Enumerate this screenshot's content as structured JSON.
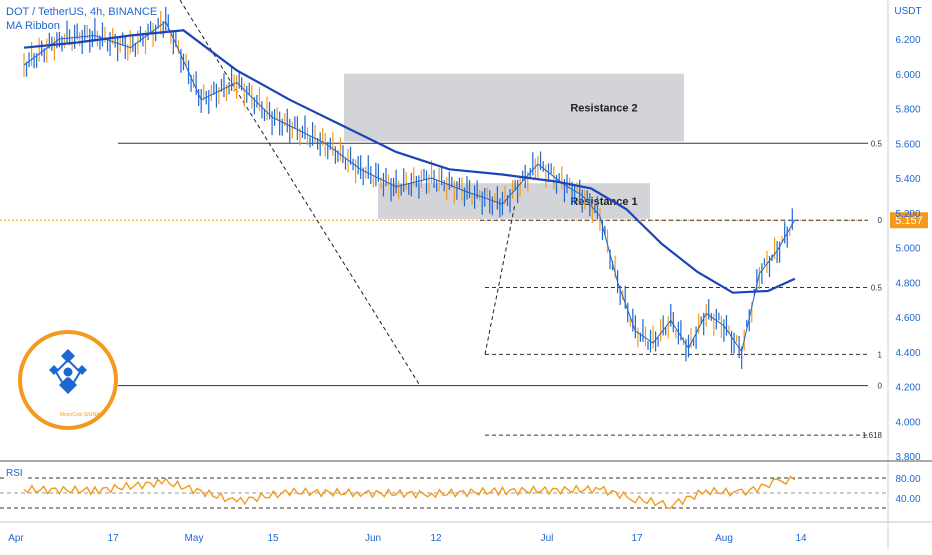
{
  "header": {
    "title": "DOT / TetherUS, 4h, BINANCE",
    "indicator": "MA Ribbon"
  },
  "price_axis": {
    "currency": "USDT",
    "ticks": [
      "6.200",
      "6.000",
      "5.800",
      "5.600",
      "5.400",
      "5.200",
      "5.000",
      "4.800",
      "4.600",
      "4.400",
      "4.200",
      "4.000",
      "3.800"
    ],
    "current_price": "5.157",
    "current_price_color": "#f39a1e"
  },
  "rsi_axis": {
    "label": "RSI",
    "ticks": [
      "80.00",
      "40.00"
    ]
  },
  "time_axis": {
    "labels": [
      "Apr",
      "17",
      "May",
      "15",
      "Jun",
      "12",
      "Jul",
      "17",
      "Aug",
      "14"
    ]
  },
  "zones": [
    {
      "label": "Resistance 2",
      "low": 5.61,
      "high": 6.0
    },
    {
      "label": "Resistance 1",
      "low": 5.165,
      "high": 5.37
    }
  ],
  "fib_labels": [
    "0.5",
    "0",
    "0.5",
    "1",
    "0",
    "1.618"
  ],
  "badge": {
    "text": "MonoCoin SIGNAL"
  },
  "colors": {
    "blue": "#1e66d0",
    "orange": "#f39a1e",
    "zone": "#d3d4d8",
    "line": "#333333"
  },
  "chart_data": {
    "type": "line",
    "title": "DOT / TetherUS, 4h, BINANCE",
    "ylim": [
      3.8,
      6.3
    ],
    "x": [
      "Apr",
      "17",
      "May",
      "15",
      "Jun",
      "12",
      "Jul",
      "17",
      "Aug",
      "14"
    ],
    "series": [
      {
        "name": "DOT / TetherUS",
        "x": [
          "Apr 1",
          "Apr 5",
          "Apr 9",
          "Apr 13",
          "Apr 17",
          "Apr 21",
          "Apr 25",
          "Apr 29",
          "May 1",
          "May 5",
          "May 9",
          "May 13",
          "May 17",
          "May 21",
          "May 25",
          "May 29",
          "Jun 1",
          "Jun 3",
          "Jun 5",
          "Jun 7",
          "Jun 9",
          "Jun 11",
          "Jun 13",
          "Jun 15",
          "Jun 17",
          "Jun 19",
          "Jun 21",
          "Jun 23",
          "Jun 25",
          "Jun 27"
        ],
        "values": [
          6.05,
          6.2,
          6.22,
          6.15,
          6.3,
          5.85,
          5.95,
          5.75,
          5.7,
          5.6,
          5.45,
          5.35,
          5.4,
          5.32,
          5.25,
          5.48,
          5.36,
          5.3,
          5.18,
          4.8,
          4.52,
          4.45,
          4.58,
          4.42,
          4.62,
          4.55,
          4.4,
          4.85,
          4.98,
          5.16
        ]
      },
      {
        "name": "MA Ribbon",
        "x": [
          "Apr 1",
          "Apr 7",
          "Apr 13",
          "Apr 19",
          "Apr 25",
          "May 1",
          "May 7",
          "May 13",
          "May 19",
          "May 25",
          "May 31",
          "Jun 4",
          "Jun 8",
          "Jun 12",
          "Jun 16",
          "Jun 20",
          "Jun 24",
          "Jun 27"
        ],
        "values": [
          6.15,
          6.18,
          6.22,
          6.25,
          6.02,
          5.85,
          5.7,
          5.55,
          5.45,
          5.42,
          5.38,
          5.34,
          5.22,
          5.02,
          4.86,
          4.74,
          4.75,
          4.82
        ]
      },
      {
        "name": "RSI",
        "x": [
          "Apr 1",
          "Apr 9",
          "Apr 17",
          "Apr 25",
          "May 1",
          "May 9",
          "May 17",
          "May 25",
          "Jun 1",
          "Jun 5",
          "Jun 9",
          "Jun 13",
          "Jun 17",
          "Jun 21",
          "Jun 25",
          "Jun 27"
        ],
        "values": [
          57,
          55,
          72,
          33,
          52,
          50,
          48,
          54,
          56,
          58,
          38,
          26,
          54,
          50,
          72,
          76
        ]
      }
    ]
  }
}
